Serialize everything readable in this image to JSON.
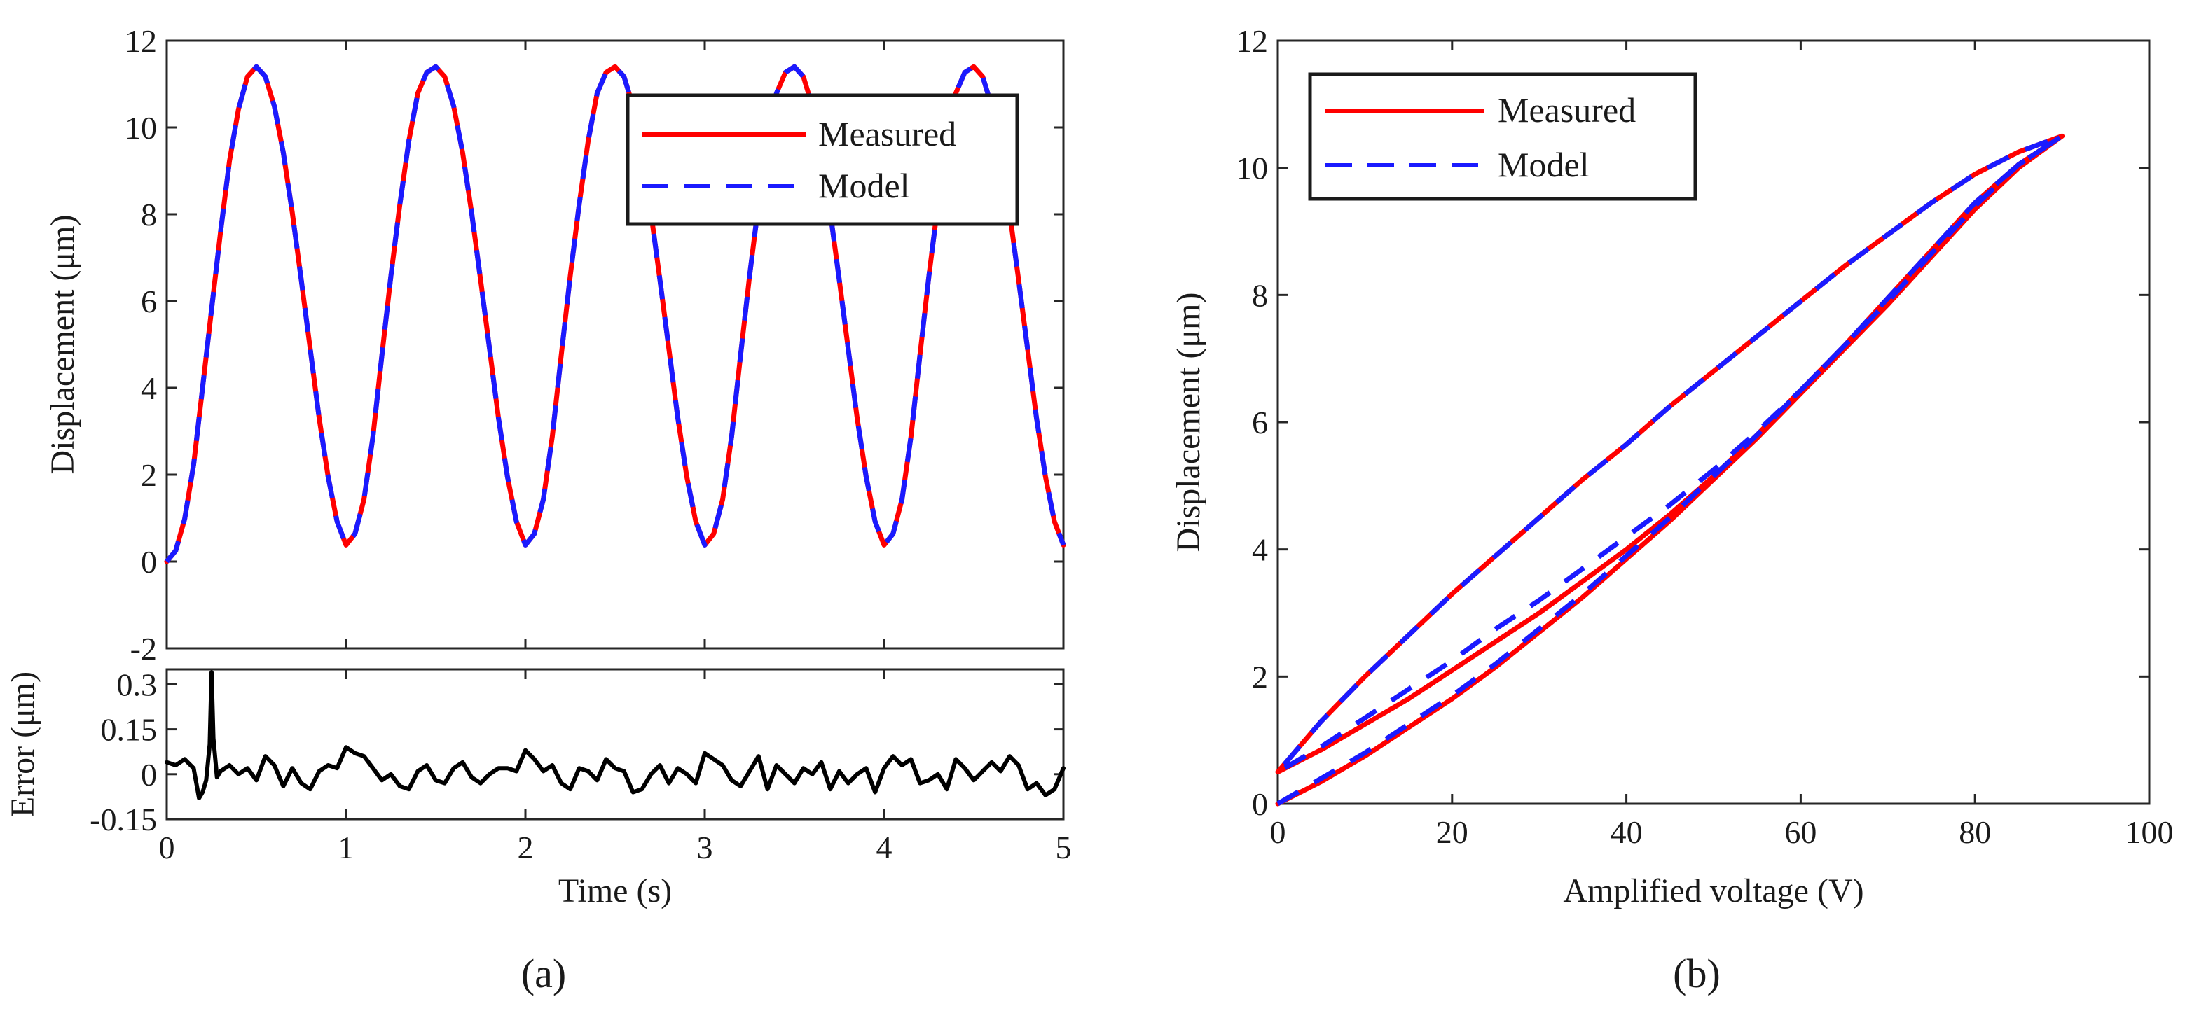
{
  "chart_data": [
    {
      "id": "a-top",
      "type": "line",
      "panel": "(a)",
      "title": "",
      "xlabel": "",
      "ylabel": "Displacement (μm)",
      "xlim": [
        0,
        5
      ],
      "ylim": [
        -2,
        12
      ],
      "x_ticks": [
        "0",
        "1",
        "2",
        "3",
        "4",
        "5"
      ],
      "y_ticks": [
        "-2",
        "0",
        "2",
        "4",
        "6",
        "8",
        "10",
        "12"
      ],
      "legend_position": "top-right",
      "series": [
        {
          "name": "Measured",
          "color": "#ff0000",
          "style": "solid",
          "x": [
            0,
            0.05,
            0.1,
            0.15,
            0.2,
            0.25,
            0.3,
            0.35,
            0.4,
            0.45,
            0.5,
            0.55,
            0.6,
            0.65,
            0.7,
            0.75,
            0.8,
            0.85,
            0.9,
            0.95,
            1.0,
            1.05,
            1.1,
            1.15,
            1.2,
            1.25,
            1.3,
            1.35,
            1.4,
            1.45,
            1.5,
            1.55,
            1.6,
            1.65,
            1.7,
            1.75,
            1.8,
            1.85,
            1.9,
            1.95,
            2.0,
            2.05,
            2.1,
            2.15,
            2.2,
            2.25,
            2.3,
            2.35,
            2.4,
            2.45,
            2.5,
            2.55,
            2.6,
            2.65,
            2.7,
            2.75,
            2.8,
            2.85,
            2.9,
            2.95,
            3.0,
            3.05,
            3.1,
            3.15,
            3.2,
            3.25,
            3.3,
            3.35,
            3.4,
            3.45,
            3.5,
            3.55,
            3.6,
            3.65,
            3.7,
            3.75,
            3.8,
            3.85,
            3.9,
            3.95,
            4.0,
            4.05,
            4.1,
            4.15,
            4.2,
            4.25,
            4.3,
            4.35,
            4.4,
            4.45,
            4.5,
            4.55,
            4.6,
            4.65,
            4.7,
            4.75,
            4.8,
            4.85,
            4.9,
            4.95,
            5.0
          ],
          "y": [
            0.0,
            0.25,
            0.98,
            2.23,
            4.01,
            5.81,
            7.59,
            9.23,
            10.42,
            11.17,
            11.4,
            11.17,
            10.49,
            9.42,
            8.04,
            6.49,
            4.9,
            3.3,
            1.95,
            0.92,
            0.38,
            0.64,
            1.43,
            2.88,
            4.76,
            6.58,
            8.23,
            9.69,
            10.79,
            11.27,
            11.4,
            11.17,
            10.49,
            9.42,
            8.04,
            6.49,
            4.9,
            3.3,
            1.95,
            0.92,
            0.38,
            0.64,
            1.43,
            2.88,
            4.76,
            6.58,
            8.23,
            9.69,
            10.79,
            11.27,
            11.4,
            11.17,
            10.49,
            9.42,
            8.04,
            6.49,
            4.9,
            3.3,
            1.95,
            0.92,
            0.38,
            0.64,
            1.43,
            2.88,
            4.76,
            6.58,
            8.23,
            9.69,
            10.79,
            11.27,
            11.4,
            11.17,
            10.49,
            9.42,
            8.04,
            6.49,
            4.9,
            3.3,
            1.95,
            0.92,
            0.38,
            0.64,
            1.43,
            2.88,
            4.76,
            6.58,
            8.23,
            9.69,
            10.79,
            11.27,
            11.4,
            11.17,
            10.49,
            9.42,
            8.04,
            6.49,
            4.9,
            3.3,
            1.95,
            0.92,
            0.38
          ]
        },
        {
          "name": "Model",
          "color": "#1a1aff",
          "style": "dashed",
          "x": [
            0,
            0.05,
            0.1,
            0.15,
            0.2,
            0.25,
            0.3,
            0.35,
            0.4,
            0.45,
            0.5,
            0.55,
            0.6,
            0.65,
            0.7,
            0.75,
            0.8,
            0.85,
            0.9,
            0.95,
            1.0,
            1.05,
            1.1,
            1.15,
            1.2,
            1.25,
            1.3,
            1.35,
            1.4,
            1.45,
            1.5,
            1.55,
            1.6,
            1.65,
            1.7,
            1.75,
            1.8,
            1.85,
            1.9,
            1.95,
            2.0,
            2.05,
            2.1,
            2.15,
            2.2,
            2.25,
            2.3,
            2.35,
            2.4,
            2.45,
            2.5,
            2.55,
            2.6,
            2.65,
            2.7,
            2.75,
            2.8,
            2.85,
            2.9,
            2.95,
            3.0,
            3.05,
            3.1,
            3.15,
            3.2,
            3.25,
            3.3,
            3.35,
            3.4,
            3.45,
            3.5,
            3.55,
            3.6,
            3.65,
            3.7,
            3.75,
            3.8,
            3.85,
            3.9,
            3.95,
            4.0,
            4.05,
            4.1,
            4.15,
            4.2,
            4.25,
            4.3,
            4.35,
            4.4,
            4.45,
            4.5,
            4.55,
            4.6,
            4.65,
            4.7,
            4.75,
            4.8,
            4.85,
            4.9,
            4.95,
            5.0
          ],
          "y": [
            0.0,
            0.25,
            0.98,
            2.23,
            4.01,
            5.81,
            7.59,
            9.23,
            10.42,
            11.17,
            11.4,
            11.17,
            10.49,
            9.42,
            8.04,
            6.49,
            4.9,
            3.3,
            1.95,
            0.92,
            0.38,
            0.64,
            1.43,
            2.88,
            4.76,
            6.58,
            8.23,
            9.69,
            10.79,
            11.27,
            11.4,
            11.17,
            10.49,
            9.42,
            8.04,
            6.49,
            4.9,
            3.3,
            1.95,
            0.92,
            0.38,
            0.64,
            1.43,
            2.88,
            4.76,
            6.58,
            8.23,
            9.69,
            10.79,
            11.27,
            11.4,
            11.17,
            10.49,
            9.42,
            8.04,
            6.49,
            4.9,
            3.3,
            1.95,
            0.92,
            0.38,
            0.64,
            1.43,
            2.88,
            4.76,
            6.58,
            8.23,
            9.69,
            10.79,
            11.27,
            11.4,
            11.17,
            10.49,
            9.42,
            8.04,
            6.49,
            4.9,
            3.3,
            1.95,
            0.92,
            0.38,
            0.64,
            1.43,
            2.88,
            4.76,
            6.58,
            8.23,
            9.69,
            10.79,
            11.27,
            11.4,
            11.17,
            10.49,
            9.42,
            8.04,
            6.49,
            4.9,
            3.3,
            1.95,
            0.92,
            0.38
          ]
        }
      ]
    },
    {
      "id": "a-bottom",
      "type": "line",
      "panel": "(a)",
      "title": "",
      "xlabel": "Time (s)",
      "ylabel": "Error (μm)",
      "xlim": [
        0,
        5
      ],
      "ylim": [
        -0.15,
        0.35
      ],
      "x_ticks": [
        "0",
        "1",
        "2",
        "3",
        "4",
        "5"
      ],
      "y_ticks": [
        "-0.15",
        "0",
        "0.15",
        "0.3"
      ],
      "series": [
        {
          "name": "Error",
          "color": "#000000",
          "style": "solid",
          "x": [
            0,
            0.05,
            0.1,
            0.15,
            0.18,
            0.2,
            0.22,
            0.24,
            0.25,
            0.26,
            0.28,
            0.3,
            0.35,
            0.4,
            0.45,
            0.5,
            0.55,
            0.6,
            0.65,
            0.7,
            0.75,
            0.8,
            0.85,
            0.9,
            0.95,
            1.0,
            1.05,
            1.1,
            1.15,
            1.2,
            1.25,
            1.3,
            1.35,
            1.4,
            1.45,
            1.5,
            1.55,
            1.6,
            1.65,
            1.7,
            1.75,
            1.8,
            1.85,
            1.9,
            1.95,
            2.0,
            2.05,
            2.1,
            2.15,
            2.2,
            2.25,
            2.3,
            2.35,
            2.4,
            2.45,
            2.5,
            2.55,
            2.6,
            2.65,
            2.7,
            2.75,
            2.8,
            2.85,
            2.9,
            2.95,
            3.0,
            3.05,
            3.1,
            3.15,
            3.2,
            3.25,
            3.3,
            3.35,
            3.4,
            3.45,
            3.5,
            3.55,
            3.6,
            3.65,
            3.7,
            3.75,
            3.8,
            3.85,
            3.9,
            3.95,
            4.0,
            4.05,
            4.1,
            4.15,
            4.2,
            4.25,
            4.3,
            4.35,
            4.4,
            4.45,
            4.5,
            4.55,
            4.6,
            4.65,
            4.7,
            4.75,
            4.8,
            4.85,
            4.9,
            4.95,
            5.0
          ],
          "y": [
            0.04,
            0.03,
            0.05,
            0.02,
            -0.08,
            -0.06,
            -0.02,
            0.1,
            0.34,
            0.12,
            -0.01,
            0.01,
            0.03,
            0.0,
            0.02,
            -0.02,
            0.06,
            0.03,
            -0.04,
            0.02,
            -0.03,
            -0.05,
            0.01,
            0.03,
            0.02,
            0.09,
            0.07,
            0.06,
            0.02,
            -0.02,
            0.0,
            -0.04,
            -0.05,
            0.01,
            0.03,
            -0.02,
            -0.03,
            0.02,
            0.04,
            -0.01,
            -0.03,
            0.0,
            0.02,
            0.02,
            0.01,
            0.08,
            0.05,
            0.01,
            0.03,
            -0.03,
            -0.05,
            0.02,
            0.01,
            -0.02,
            0.05,
            0.02,
            0.01,
            -0.06,
            -0.05,
            0.0,
            0.03,
            -0.03,
            0.02,
            0.0,
            -0.03,
            0.07,
            0.05,
            0.03,
            -0.02,
            -0.04,
            0.01,
            0.06,
            -0.05,
            0.03,
            0.0,
            -0.03,
            0.02,
            0.0,
            0.04,
            -0.05,
            0.01,
            -0.03,
            0.0,
            0.02,
            -0.06,
            0.02,
            0.06,
            0.03,
            0.05,
            -0.03,
            -0.02,
            0.0,
            -0.05,
            0.05,
            0.02,
            -0.02,
            0.01,
            0.04,
            0.01,
            0.06,
            0.03,
            -0.05,
            -0.03,
            -0.07,
            -0.05,
            0.02
          ]
        }
      ]
    },
    {
      "id": "b",
      "type": "line",
      "panel": "(b)",
      "title": "",
      "xlabel": "Amplified voltage (V)",
      "ylabel": "Displacement (μm)",
      "xlim": [
        0,
        100
      ],
      "ylim": [
        0,
        12
      ],
      "x_ticks": [
        "0",
        "20",
        "40",
        "60",
        "80",
        "100"
      ],
      "y_ticks": [
        "0",
        "2",
        "4",
        "6",
        "8",
        "10",
        "12"
      ],
      "legend_position": "top-left",
      "series": [
        {
          "name": "Measured",
          "color": "#ff0000",
          "style": "solid",
          "x": [
            0,
            5,
            10,
            15,
            20,
            25,
            30,
            35,
            40,
            45,
            50,
            55,
            60,
            65,
            70,
            75,
            80,
            85,
            90,
            85,
            80,
            75,
            70,
            65,
            60,
            55,
            50,
            45,
            40,
            35,
            30,
            25,
            20,
            15,
            10,
            5,
            0,
            5,
            10,
            15,
            20,
            25,
            30,
            35,
            40,
            45,
            50,
            55,
            60,
            65,
            70,
            75,
            80,
            85,
            90
          ],
          "y": [
            0.0,
            0.35,
            0.75,
            1.2,
            1.65,
            2.15,
            2.7,
            3.25,
            3.85,
            4.45,
            5.1,
            5.75,
            6.45,
            7.15,
            7.85,
            8.6,
            9.35,
            10.0,
            10.5,
            10.25,
            9.9,
            9.45,
            8.95,
            8.45,
            7.9,
            7.35,
            6.8,
            6.25,
            5.65,
            5.1,
            4.5,
            3.9,
            3.3,
            2.65,
            2.0,
            1.3,
            0.5,
            0.85,
            1.25,
            1.65,
            2.1,
            2.55,
            3.0,
            3.5,
            4.0,
            4.55,
            5.15,
            5.8,
            6.5,
            7.2,
            7.95,
            8.7,
            9.45,
            10.05,
            10.5
          ]
        },
        {
          "name": "Model",
          "color": "#1a1aff",
          "style": "dashed",
          "x": [
            0,
            5,
            10,
            15,
            20,
            25,
            30,
            35,
            40,
            45,
            50,
            55,
            60,
            65,
            70,
            75,
            80,
            85,
            90,
            85,
            80,
            75,
            70,
            65,
            60,
            55,
            50,
            45,
            40,
            35,
            30,
            25,
            20,
            15,
            10,
            5,
            0,
            5,
            10,
            15,
            20,
            25,
            30,
            35,
            40,
            45,
            50,
            55,
            60,
            65,
            70,
            75,
            80,
            85,
            90
          ],
          "y": [
            0.0,
            0.4,
            0.8,
            1.25,
            1.7,
            2.2,
            2.75,
            3.3,
            3.9,
            4.5,
            5.15,
            5.8,
            6.5,
            7.2,
            7.9,
            8.65,
            9.4,
            10.05,
            10.5,
            10.25,
            9.9,
            9.45,
            8.95,
            8.45,
            7.9,
            7.35,
            6.8,
            6.25,
            5.65,
            5.1,
            4.5,
            3.9,
            3.3,
            2.65,
            2.0,
            1.3,
            0.5,
            0.9,
            1.35,
            1.8,
            2.25,
            2.75,
            3.2,
            3.7,
            4.2,
            4.7,
            5.25,
            5.85,
            6.5,
            7.2,
            7.95,
            8.7,
            9.45,
            10.05,
            10.5
          ]
        }
      ]
    }
  ],
  "legend_a": {
    "measured": "Measured",
    "model": "Model"
  },
  "legend_b": {
    "measured": "Measured",
    "model": "Model"
  },
  "panel_labels": {
    "a": "(a)",
    "b": "(b)"
  }
}
